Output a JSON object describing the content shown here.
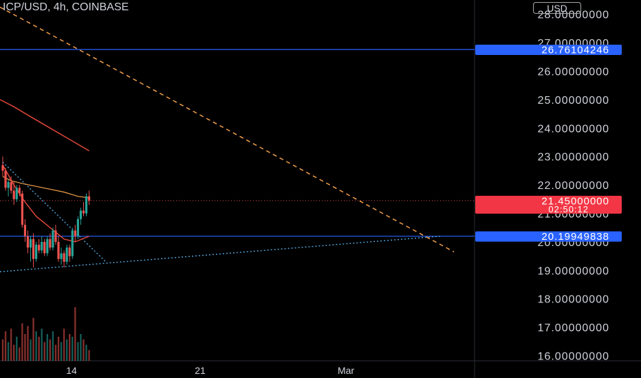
{
  "header": {
    "title": "ICP/USD, 4h, COINBASE",
    "currency_button": "USD"
  },
  "colors": {
    "background": "#000000",
    "up": "#26a69a",
    "down": "#ef5350",
    "horizontal_line": "#2962ff",
    "badge_blue": "#2962ff",
    "badge_red": "#f23645",
    "ma_fast": "#f5a04c",
    "ma_slow": "#e0463a",
    "trend_dashed": "#f5a04c",
    "trend_dotted": "#4f9fd5"
  },
  "chart_data": {
    "type": "candlestick",
    "y_ticks": [
      "16.00000000",
      "17.00000000",
      "18.00000000",
      "19.00000000",
      "20.00000000",
      "21.00000000",
      "22.00000000",
      "23.00000000",
      "24.00000000",
      "25.00000000",
      "26.00000000",
      "27.00000000",
      "28.00000000"
    ],
    "ylim": [
      15.82,
      28.5
    ],
    "x_ticks": [
      "14",
      "21",
      "Mar"
    ],
    "horizontal_lines": [
      {
        "value": 26.76104246,
        "label": "26.76104246"
      },
      {
        "value": 20.19949838,
        "label": "20.19949838"
      }
    ],
    "last_price": {
      "value": 21.45,
      "label": "21.45000000",
      "countdown": "02:50:12"
    },
    "candles": [
      {
        "o": 22.7,
        "h": 23.0,
        "l": 22.3,
        "c": 22.5
      },
      {
        "o": 22.5,
        "h": 22.6,
        "l": 21.8,
        "c": 21.9
      },
      {
        "o": 21.9,
        "h": 22.2,
        "l": 21.6,
        "c": 22.1
      },
      {
        "o": 22.1,
        "h": 22.3,
        "l": 21.7,
        "c": 21.8
      },
      {
        "o": 21.8,
        "h": 22.1,
        "l": 21.3,
        "c": 21.5
      },
      {
        "o": 21.5,
        "h": 22.0,
        "l": 21.4,
        "c": 21.9
      },
      {
        "o": 21.9,
        "h": 22.0,
        "l": 21.6,
        "c": 21.7
      },
      {
        "o": 21.7,
        "h": 21.8,
        "l": 20.5,
        "c": 20.6
      },
      {
        "o": 20.6,
        "h": 20.8,
        "l": 20.0,
        "c": 20.2
      },
      {
        "o": 20.2,
        "h": 20.4,
        "l": 19.6,
        "c": 19.8
      },
      {
        "o": 19.8,
        "h": 20.2,
        "l": 19.3,
        "c": 20.1
      },
      {
        "o": 20.1,
        "h": 20.3,
        "l": 19.1,
        "c": 19.4
      },
      {
        "o": 19.4,
        "h": 20.0,
        "l": 19.3,
        "c": 19.9
      },
      {
        "o": 19.9,
        "h": 20.1,
        "l": 19.6,
        "c": 19.7
      },
      {
        "o": 19.7,
        "h": 20.2,
        "l": 19.6,
        "c": 20.0
      },
      {
        "o": 20.0,
        "h": 20.1,
        "l": 19.5,
        "c": 19.6
      },
      {
        "o": 19.6,
        "h": 20.2,
        "l": 19.5,
        "c": 20.1
      },
      {
        "o": 20.1,
        "h": 20.3,
        "l": 19.7,
        "c": 19.8
      },
      {
        "o": 19.8,
        "h": 20.5,
        "l": 19.7,
        "c": 20.4
      },
      {
        "o": 20.4,
        "h": 20.6,
        "l": 19.9,
        "c": 20.0
      },
      {
        "o": 20.0,
        "h": 20.2,
        "l": 19.3,
        "c": 19.4
      },
      {
        "o": 19.4,
        "h": 19.8,
        "l": 19.2,
        "c": 19.6
      },
      {
        "o": 19.6,
        "h": 19.7,
        "l": 19.1,
        "c": 19.3
      },
      {
        "o": 19.3,
        "h": 19.9,
        "l": 19.2,
        "c": 19.8
      },
      {
        "o": 19.8,
        "h": 19.9,
        "l": 19.3,
        "c": 19.5
      },
      {
        "o": 19.5,
        "h": 20.5,
        "l": 19.4,
        "c": 20.4
      },
      {
        "o": 20.4,
        "h": 20.6,
        "l": 20.0,
        "c": 20.2
      },
      {
        "o": 20.2,
        "h": 20.9,
        "l": 20.1,
        "c": 20.8
      },
      {
        "o": 20.8,
        "h": 21.2,
        "l": 20.6,
        "c": 21.1
      },
      {
        "o": 21.1,
        "h": 21.4,
        "l": 20.9,
        "c": 21.0
      },
      {
        "o": 21.0,
        "h": 21.7,
        "l": 20.9,
        "c": 21.6
      },
      {
        "o": 21.6,
        "h": 21.8,
        "l": 21.3,
        "c": 21.45
      }
    ],
    "volumes": [
      40,
      55,
      35,
      60,
      30,
      45,
      25,
      70,
      50,
      65,
      40,
      80,
      55,
      45,
      60,
      35,
      50,
      40,
      55,
      30,
      45,
      35,
      60,
      40,
      50,
      45,
      100,
      35,
      50,
      40,
      30,
      20
    ],
    "ma_fast": [
      {
        "i": 0,
        "v": 22.3
      },
      {
        "i": 3,
        "v": 22.15
      },
      {
        "i": 7,
        "v": 22.05
      },
      {
        "i": 12,
        "v": 21.95
      },
      {
        "i": 17,
        "v": 21.85
      },
      {
        "i": 22,
        "v": 21.75
      },
      {
        "i": 27,
        "v": 21.6
      },
      {
        "i": 31,
        "v": 21.55
      }
    ],
    "ma_slow": [
      {
        "i": -1,
        "v": 25.0
      },
      {
        "i": 4,
        "v": 24.75
      },
      {
        "i": 10,
        "v": 24.4
      },
      {
        "i": 17,
        "v": 24.0
      },
      {
        "i": 24,
        "v": 23.6
      },
      {
        "i": 31,
        "v": 23.2
      }
    ],
    "ma_lower": [
      {
        "i": 0,
        "v": 22.7
      },
      {
        "i": 4,
        "v": 22.0
      },
      {
        "i": 8,
        "v": 21.4
      },
      {
        "i": 12,
        "v": 20.9
      },
      {
        "i": 17,
        "v": 20.5
      },
      {
        "i": 22,
        "v": 20.1
      },
      {
        "i": 26,
        "v": 20.0
      },
      {
        "i": 31,
        "v": 20.2
      }
    ],
    "trend_dashed": [
      {
        "i": -1,
        "v": 28.25
      },
      {
        "i": 162,
        "v": 19.65
      }
    ],
    "trend_dotted_down": [
      {
        "i": 0,
        "v": 22.8
      },
      {
        "i": 37,
        "v": 19.3
      }
    ],
    "trend_dotted_up": [
      {
        "i": -1,
        "v": 18.95
      },
      {
        "i": 157,
        "v": 20.2
      }
    ]
  }
}
